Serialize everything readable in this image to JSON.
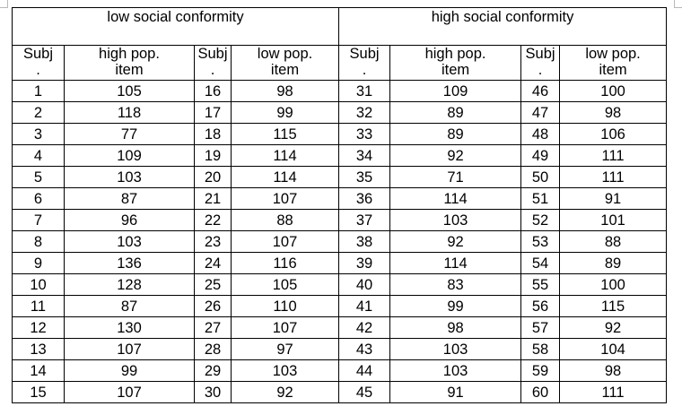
{
  "table": {
    "groups": [
      "low social conformity",
      "high social conformity"
    ],
    "columns": [
      "Subj\n.",
      "high pop.\nitem",
      "Subj\n.",
      "low pop.\nitem",
      "Subj\n.",
      "high pop.\nitem",
      "Subj\n.",
      "low pop.\nitem"
    ],
    "rows": [
      [
        "1",
        "105",
        "16",
        "98",
        "31",
        "109",
        "46",
        "100"
      ],
      [
        "2",
        "118",
        "17",
        "99",
        "32",
        "89",
        "47",
        "98"
      ],
      [
        "3",
        "77",
        "18",
        "115",
        "33",
        "89",
        "48",
        "106"
      ],
      [
        "4",
        "109",
        "19",
        "114",
        "34",
        "92",
        "49",
        "111"
      ],
      [
        "5",
        "103",
        "20",
        "114",
        "35",
        "71",
        "50",
        "111"
      ],
      [
        "6",
        "87",
        "21",
        "107",
        "36",
        "114",
        "51",
        "91"
      ],
      [
        "7",
        "96",
        "22",
        "88",
        "37",
        "103",
        "52",
        "101"
      ],
      [
        "8",
        "103",
        "23",
        "107",
        "38",
        "92",
        "53",
        "88"
      ],
      [
        "9",
        "136",
        "24",
        "116",
        "39",
        "114",
        "54",
        "89"
      ],
      [
        "10",
        "128",
        "25",
        "105",
        "40",
        "83",
        "55",
        "100"
      ],
      [
        "11",
        "87",
        "26",
        "110",
        "41",
        "99",
        "56",
        "115"
      ],
      [
        "12",
        "130",
        "27",
        "107",
        "42",
        "98",
        "57",
        "92"
      ],
      [
        "13",
        "107",
        "28",
        "97",
        "43",
        "103",
        "58",
        "104"
      ],
      [
        "14",
        "99",
        "29",
        "103",
        "44",
        "103",
        "59",
        "98"
      ],
      [
        "15",
        "107",
        "30",
        "92",
        "45",
        "91",
        "60",
        "111"
      ]
    ]
  }
}
